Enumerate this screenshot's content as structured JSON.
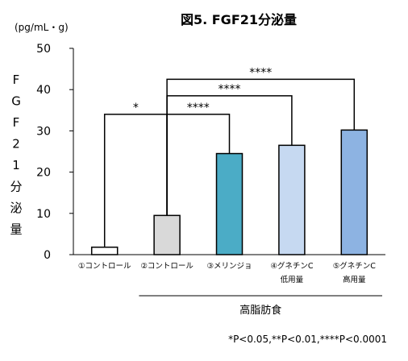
{
  "chart_data": {
    "type": "bar",
    "title": "図5. FGF21分泌量",
    "unit_label": "(pg/mL・g)",
    "ylabel": "FGF21分泌量",
    "ylim": [
      0,
      50
    ],
    "yticks": [
      0,
      10,
      20,
      30,
      40,
      50
    ],
    "grid": false,
    "categories": [
      [
        "①コントロール"
      ],
      [
        "②コントロール"
      ],
      [
        "③メリンジョ"
      ],
      [
        "④グネチンC",
        "低用量"
      ],
      [
        "⑤グネチンC",
        "高用量"
      ]
    ],
    "values": [
      1.8,
      9.5,
      24.5,
      26.5,
      30.2
    ],
    "bar_colors": [
      "#ffffff",
      "#d9d9d9",
      "#4bacc6",
      "#c6d9f1",
      "#8db3e2"
    ],
    "group_label": "高脂肪食",
    "group_categories": [
      1,
      2,
      3,
      4
    ],
    "comparisons": [
      {
        "from": 0,
        "to": 1,
        "label": "*",
        "y": 34
      },
      {
        "from": 1,
        "to": 2,
        "label": "****",
        "y": 34
      },
      {
        "from": 1,
        "to": 3,
        "label": "****",
        "y": 38.5
      },
      {
        "from": 1,
        "to": 4,
        "label": "****",
        "y": 42.5
      }
    ],
    "footnote": "*P<0.05,**P<0.01,****P<0.0001"
  }
}
